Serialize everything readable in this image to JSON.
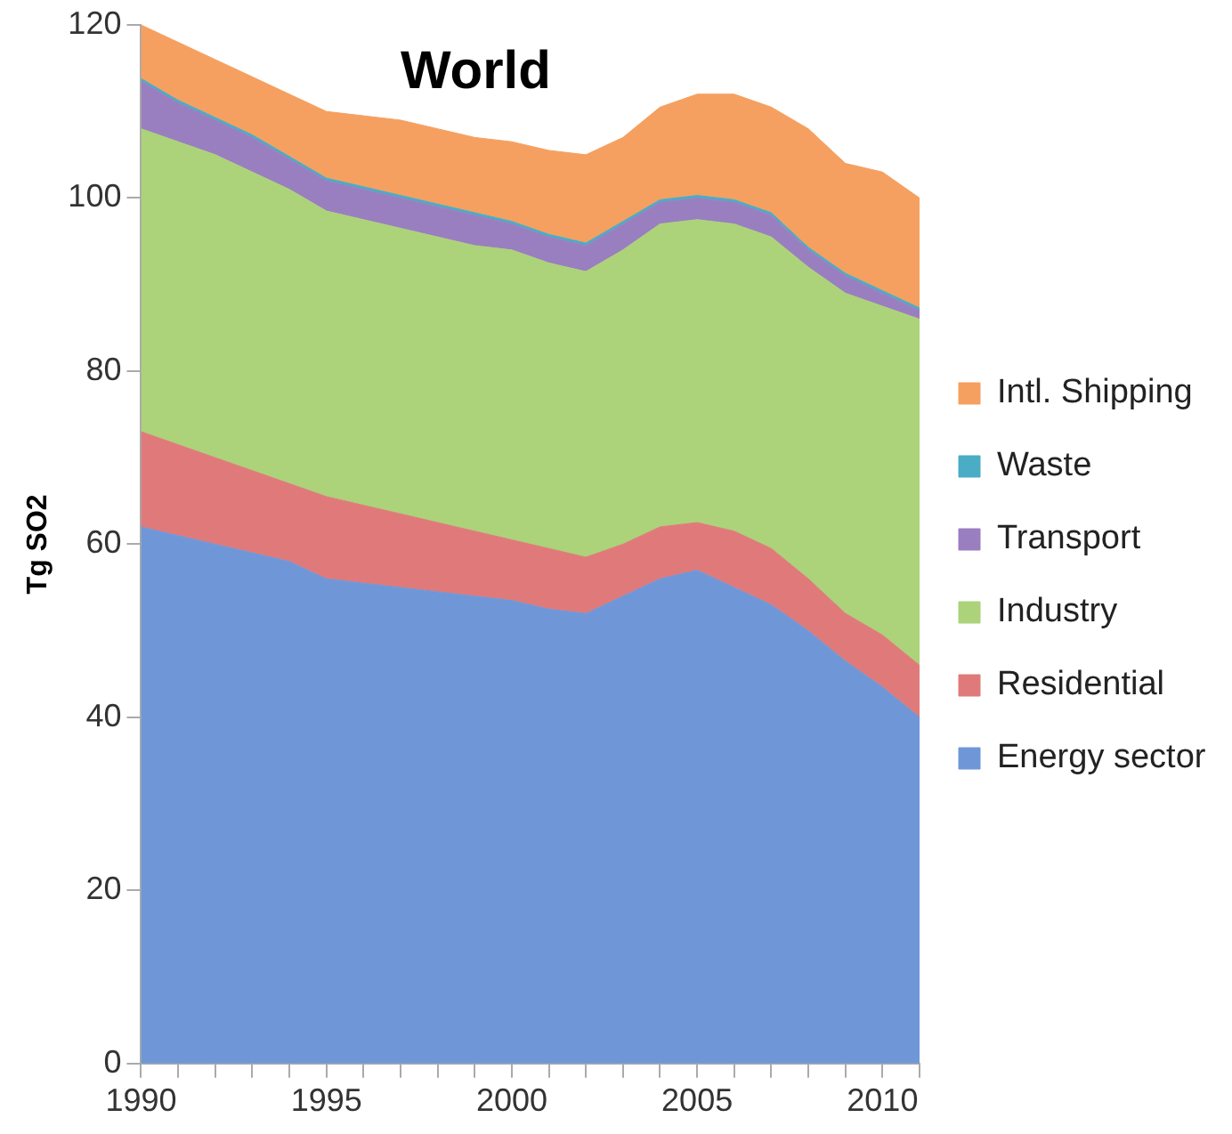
{
  "chart_data": {
    "type": "area",
    "title": "World",
    "ylabel": "Tg SO2",
    "stacked": true,
    "legend": "right",
    "grid": false,
    "x": [
      1990,
      1991,
      1992,
      1993,
      1994,
      1995,
      1996,
      1997,
      1998,
      1999,
      2000,
      2001,
      2002,
      2003,
      2004,
      2005,
      2006,
      2007,
      2008,
      2009,
      2010,
      2011
    ],
    "xlim": [
      1990,
      2011
    ],
    "xticks": [
      1990,
      {
        "value": 1991,
        "label": null
      },
      {
        "value": 1992,
        "label": null
      },
      {
        "value": 1993,
        "label": null
      },
      {
        "value": 1994,
        "label": null
      },
      1995,
      {
        "value": 1996,
        "label": null
      },
      {
        "value": 1997,
        "label": null
      },
      {
        "value": 1998,
        "label": null
      },
      {
        "value": 1999,
        "label": null
      },
      2000,
      {
        "value": 2001,
        "label": null
      },
      {
        "value": 2002,
        "label": null
      },
      {
        "value": 2003,
        "label": null
      },
      {
        "value": 2004,
        "label": null
      },
      2005,
      {
        "value": 2006,
        "label": null
      },
      {
        "value": 2007,
        "label": null
      },
      {
        "value": 2008,
        "label": null
      },
      {
        "value": 2009,
        "label": null
      },
      2010,
      {
        "value": 2011,
        "label": null
      }
    ],
    "ylim": [
      0,
      120
    ],
    "yticks": [
      0,
      20,
      40,
      60,
      80,
      100,
      120
    ],
    "series": [
      {
        "name": "Energy sector",
        "color": "#6f97d8",
        "values": [
          62,
          61,
          60,
          59,
          58,
          56,
          55.5,
          55,
          54.5,
          54,
          53.5,
          52.5,
          52,
          54,
          56,
          57,
          55,
          53,
          50,
          46.5,
          43.5,
          40
        ]
      },
      {
        "name": "Residential",
        "color": "#e07a7a",
        "values": [
          11,
          10.5,
          10,
          9.5,
          9,
          9.5,
          9,
          8.5,
          8,
          7.5,
          7,
          7,
          6.5,
          6,
          6,
          5.5,
          6.5,
          6.5,
          6,
          5.5,
          6,
          6
        ]
      },
      {
        "name": "Industry",
        "color": "#acd27a",
        "values": [
          35,
          35,
          35,
          34.5,
          34,
          33,
          33,
          33,
          33,
          33,
          33.5,
          33,
          33,
          34,
          35,
          35,
          35.5,
          36,
          36,
          37,
          38,
          40
        ]
      },
      {
        "name": "Transport",
        "color": "#9a7fc0",
        "values": [
          5.5,
          4.5,
          4,
          4,
          3.5,
          3.5,
          3.5,
          3.5,
          3.5,
          3.5,
          3,
          3,
          3,
          3,
          2.5,
          2.5,
          2.5,
          2.5,
          2,
          2,
          1.5,
          1
        ]
      },
      {
        "name": "Waste",
        "color": "#4bacc6",
        "values": [
          0.3,
          0.3,
          0.3,
          0.3,
          0.3,
          0.3,
          0.3,
          0.3,
          0.3,
          0.3,
          0.3,
          0.3,
          0.3,
          0.3,
          0.3,
          0.3,
          0.3,
          0.3,
          0.3,
          0.3,
          0.3,
          0.3
        ]
      },
      {
        "name": "Intl. Shipping",
        "color": "#f5a060",
        "values": [
          6.2,
          6.7,
          6.7,
          6.7,
          7.2,
          7.7,
          8.2,
          8.7,
          8.7,
          8.7,
          9.2,
          9.7,
          10.2,
          9.7,
          10.7,
          11.7,
          12.2,
          12.2,
          13.7,
          12.7,
          13.7,
          12.7
        ]
      }
    ]
  }
}
